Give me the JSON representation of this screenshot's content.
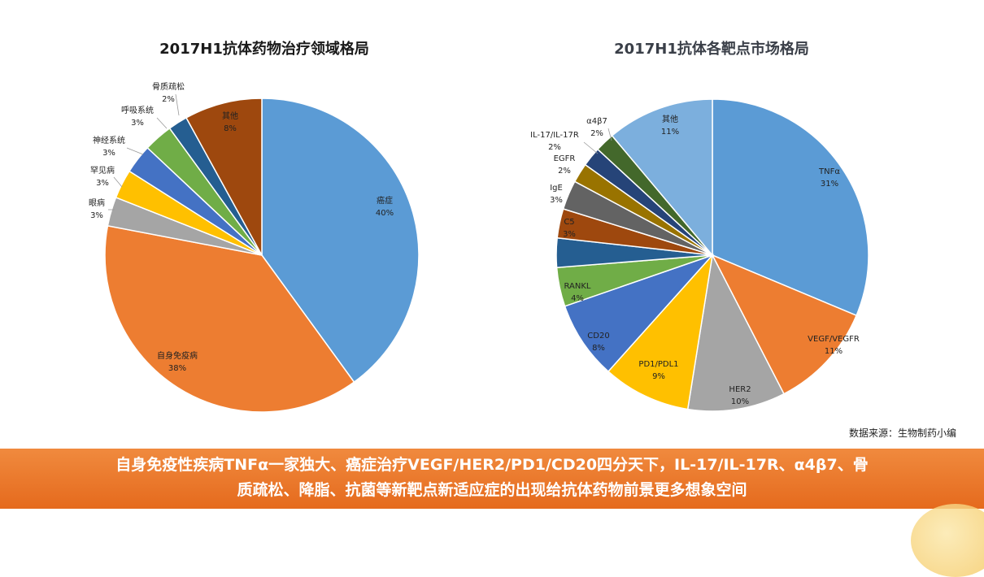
{
  "chart_data": [
    {
      "type": "pie",
      "title": "2017H1抗体药物治疗领域格局",
      "series": [
        {
          "label": "癌症",
          "pct": "40%",
          "value": 40,
          "color": "#5b9bd5"
        },
        {
          "label": "自身免疫病",
          "pct": "38%",
          "value": 38,
          "color": "#ed7d31"
        },
        {
          "label": "眼病",
          "pct": "3%",
          "value": 3,
          "color": "#a5a5a5"
        },
        {
          "label": "罕见病",
          "pct": "3%",
          "value": 3,
          "color": "#ffc000"
        },
        {
          "label": "神经系统",
          "pct": "3%",
          "value": 3,
          "color": "#4472c4"
        },
        {
          "label": "呼吸系统",
          "pct": "3%",
          "value": 3,
          "color": "#70ad47"
        },
        {
          "label": "骨质疏松",
          "pct": "2%",
          "value": 2,
          "color": "#255e91"
        },
        {
          "label": "其他",
          "pct": "8%",
          "value": 8,
          "color": "#9e480e"
        }
      ]
    },
    {
      "type": "pie",
      "title": "2017H1抗体各靶点市场格局",
      "series": [
        {
          "label": "TNFα",
          "pct": "31%",
          "value": 31,
          "color": "#5b9bd5"
        },
        {
          "label": "VEGF/VEGFR",
          "pct": "11%",
          "value": 11,
          "color": "#ed7d31"
        },
        {
          "label": "HER2",
          "pct": "10%",
          "value": 10,
          "color": "#a5a5a5"
        },
        {
          "label": "PD1/PDL1",
          "pct": "9%",
          "value": 9,
          "color": "#ffc000"
        },
        {
          "label": "CD20",
          "pct": "8%",
          "value": 8,
          "color": "#4472c4"
        },
        {
          "label": "RANKL",
          "pct": "4%",
          "value": 4,
          "color": "#70ad47"
        },
        {
          "label": "",
          "pct": "",
          "value": 3,
          "color": "#255e91"
        },
        {
          "label": "C5",
          "pct": "3%",
          "value": 3,
          "color": "#9e480e"
        },
        {
          "label": "IgE",
          "pct": "3%",
          "value": 3,
          "color": "#636363"
        },
        {
          "label": "EGFR",
          "pct": "2%",
          "value": 2,
          "color": "#997300"
        },
        {
          "label": "IL-17/IL-17R",
          "pct": "2%",
          "value": 2,
          "color": "#264478"
        },
        {
          "label": "α4β7",
          "pct": "2%",
          "value": 2,
          "color": "#43682b"
        },
        {
          "label": "其他",
          "pct": "11%",
          "value": 11,
          "color": "#7cafdd"
        }
      ]
    }
  ],
  "source_text": "数据来源：生物制药小编",
  "banner": {
    "line1": "自身免疫性疾病TNFα一家独大、癌症治疗VEGF/HER2/PD1/CD20四分天下，IL-17/IL-17R、α4β7、骨",
    "line2": "质疏松、降脂、抗菌等新靶点新适应症的出现给抗体药物前景更多想象空间"
  }
}
